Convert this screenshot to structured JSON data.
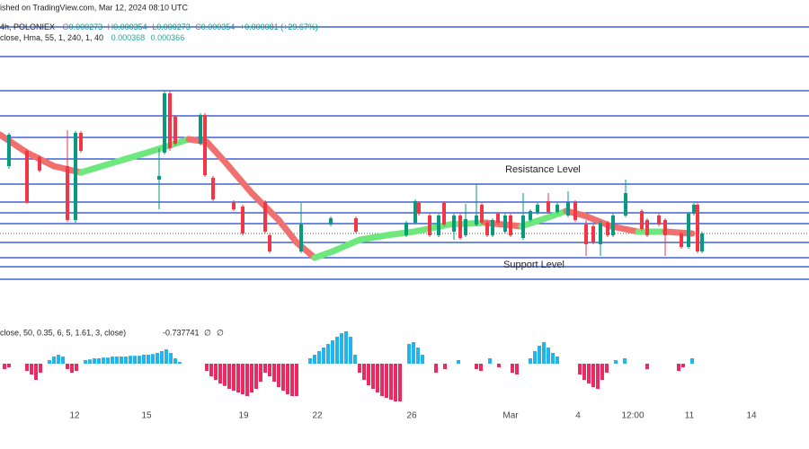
{
  "header": {
    "published": "ished on TradingView.com, Mar 12, 2024 08:10 UTC",
    "symbol": "4h, POLONIEX",
    "ohlc_labels": [
      "O",
      "H",
      "L",
      "C"
    ],
    "ohlc_values": [
      0.000273,
      0.000354,
      0.000273,
      0.000354
    ],
    "change": "+0.000081 (+29.67%)",
    "indicator": "close, Hma, 55, 1, 240, 1, 40",
    "indicator_values": [
      0.000368,
      0.000366
    ]
  },
  "chart_data": [
    {
      "type": "candlestick",
      "xlim": [
        0,
        180
      ],
      "ylim": [
        0.0002,
        0.00054
      ],
      "up_color": "#089981",
      "down_color": "#f23645",
      "x": [
        2,
        6,
        8.8,
        15,
        16.8,
        18,
        35.4,
        36.6,
        37.8,
        39,
        44.6,
        45.6,
        47.4,
        52,
        54,
        59,
        60,
        67,
        73.6,
        79.2,
        90.4,
        92.4,
        93.2,
        95.6,
        97.6,
        98.8,
        101,
        102.4,
        103.6,
        106,
        107.2,
        108.4,
        109.6,
        110.8,
        112.4,
        113.6,
        116.4,
        118,
        119.6,
        122,
        124,
        126.4,
        128,
        130.4,
        132,
        133.6,
        135.2,
        136.4,
        139.2,
        142.8,
        144,
        146.6,
        148,
        151.6,
        153.2,
        154.4,
        155.2,
        156.2
      ],
      "open": [
        0.000355,
        0.000372,
        0.000365,
        0.000355,
        0.000295,
        0.000392,
        0.00034,
        0.00037,
        0.000436,
        0.00041,
        0.00038,
        0.000412,
        0.000342,
        0.000315,
        0.00031,
        0.000315,
        0.000278,
        0.00026,
        0.00029,
        0.000297,
        0.000278,
        0.000292,
        0.000314,
        0.0003,
        0.000278,
        0.000314,
        0.000282,
        0.0003,
        0.000278,
        0.00029,
        0.000312,
        0.000292,
        0.000278,
        0.000302,
        0.000282,
        0.0003,
        0.000275,
        0.000295,
        0.000303,
        0.000316,
        0.000304,
        0.0003,
        0.000315,
        0.00029,
        0.000288,
        0.000268,
        0.000292,
        0.000278,
        0.0003,
        0.000305,
        0.000295,
        0.0003,
        0.000295,
        0.00028,
        0.000265,
        0.000302,
        0.000312,
        0.00026
      ],
      "high": [
        0.000392,
        0.000374,
        0.000367,
        0.000395,
        0.000394,
        0.000394,
        0.000375,
        0.000439,
        0.000439,
        0.000412,
        0.000414,
        0.000414,
        0.000344,
        0.000317,
        0.000312,
        0.000317,
        0.00028,
        0.000314,
        0.000299,
        0.000299,
        0.000294,
        0.000318,
        0.000316,
        0.000302,
        0.000302,
        0.000316,
        0.000302,
        0.000302,
        0.000313,
        0.000335,
        0.000314,
        0.000294,
        0.000297,
        0.000304,
        0.000302,
        0.000302,
        0.000325,
        0.000307,
        0.000314,
        0.000325,
        0.000314,
        0.000327,
        0.000317,
        0.000295,
        0.00029,
        0.000294,
        0.000294,
        0.000302,
        0.00034,
        0.000307,
        0.000297,
        0.000302,
        0.000297,
        0.000282,
        0.000304,
        0.000314,
        0.000314,
        0.000282
      ],
      "low": [
        0.000352,
        0.000313,
        0.000348,
        0.000293,
        0.000292,
        0.00037,
        0.000307,
        0.000368,
        0.000372,
        0.000378,
        0.000378,
        0.000343,
        0.000316,
        0.000305,
        0.000278,
        0.00028,
        0.000258,
        0.000258,
        0.000288,
        0.00028,
        0.000276,
        0.00029,
        0.0003,
        0.000276,
        0.000276,
        0.000288,
        0.000273,
        0.000273,
        0.000276,
        0.000288,
        0.00029,
        0.000276,
        0.000276,
        0.00029,
        0.00028,
        0.000276,
        0.000273,
        0.000293,
        0.000301,
        0.000302,
        0.000302,
        0.000298,
        0.000293,
        0.000255,
        0.000268,
        0.000255,
        0.000276,
        0.000276,
        0.000298,
        0.000283,
        0.000276,
        0.000288,
        0.000255,
        0.000263,
        0.000263,
        0.0003,
        0.000258,
        0.000258
      ],
      "close": [
        0.00039,
        0.000315,
        0.00035,
        0.000295,
        0.000392,
        0.000372,
        0.000344,
        0.000436,
        0.000375,
        0.00038,
        0.000412,
        0.000345,
        0.000318,
        0.000307,
        0.00028,
        0.000282,
        0.00026,
        0.00029,
        0.000297,
        0.000282,
        0.000292,
        0.000316,
        0.000302,
        0.000278,
        0.0003,
        0.00029,
        0.0003,
        0.000275,
        0.000296,
        0.0003,
        0.000292,
        0.000278,
        0.000295,
        0.000292,
        0.0003,
        0.000278,
        0.0003,
        0.000305,
        0.000312,
        0.000304,
        0.000312,
        0.000315,
        0.000295,
        0.000268,
        0.00027,
        0.000292,
        0.000278,
        0.0003,
        0.000325,
        0.000285,
        0.000278,
        0.00029,
        0.000278,
        0.000265,
        0.000302,
        0.000312,
        0.00026,
        0.00028
      ],
      "ma": {
        "x": [
          0,
          6,
          12,
          18,
          26,
          34,
          42,
          46,
          50,
          56,
          62,
          66,
          70,
          74,
          80,
          86,
          92,
          100,
          108,
          116,
          122,
          126,
          130,
          136,
          142,
          148,
          154
        ],
        "values": [
          0.00039,
          0.00037,
          0.000355,
          0.000348,
          0.00036,
          0.000372,
          0.000385,
          0.000382,
          0.00036,
          0.000325,
          0.000295,
          0.00027,
          0.000253,
          0.00026,
          0.000273,
          0.000278,
          0.000282,
          0.00029,
          0.000292,
          0.000288,
          0.000298,
          0.000305,
          0.0003,
          0.000288,
          0.000282,
          0.000282,
          0.00028
        ],
        "rise_color": "#6ee87c",
        "fall_color": "#f07070"
      },
      "levels": [
        0.00051,
        0.000477,
        0.000439,
        0.000411,
        0.000387,
        0.000363,
        0.000335,
        0.000315,
        0.000303,
        0.000291,
        0.00027,
        0.000253,
        0.000243,
        0.000229
      ],
      "level_color": "#1f45c9",
      "price_line": 0.00028,
      "annotations": [
        "Resistance Level",
        "Support Level"
      ],
      "annotation_colors": [
        "#f23645",
        "#2962ff"
      ],
      "xticks": [
        {
          "value": 16.6,
          "label": "12"
        },
        {
          "value": 32.6,
          "label": "15"
        },
        {
          "value": 54.2,
          "label": "19"
        },
        {
          "value": 70.6,
          "label": "22"
        },
        {
          "value": 91.6,
          "label": "26"
        },
        {
          "value": 113.6,
          "label": "Mar"
        },
        {
          "value": 128.6,
          "label": "4"
        },
        {
          "value": 140.8,
          "label": "12:00"
        },
        {
          "value": 153.4,
          "label": "11"
        },
        {
          "value": 167.2,
          "label": "14"
        }
      ]
    },
    {
      "type": "histogram",
      "title": "close, 50, 0.35, 6, 5, 1.61, 3, close)",
      "last_value": -0.737741,
      "symbols": [
        "∅",
        "∅"
      ],
      "xlim": [
        0,
        180
      ],
      "ylim": [
        -1.15,
        1.0
      ],
      "pos_color": "#22b5ec",
      "neg_color": "#ec2a62",
      "x": [
        1,
        2,
        6,
        7,
        8,
        9,
        11,
        12,
        13,
        14,
        15,
        16,
        17,
        19,
        20,
        21,
        22,
        23,
        24,
        25,
        26,
        27,
        28,
        29,
        30,
        31,
        32,
        33,
        34,
        35,
        36,
        37,
        38,
        39,
        40,
        46,
        47,
        48,
        49,
        50,
        51,
        52,
        53,
        54,
        55,
        56,
        57,
        58,
        59,
        60,
        61,
        62,
        63,
        64,
        65,
        66,
        69,
        70,
        71,
        72,
        73,
        74,
        75,
        76,
        77,
        78,
        79,
        80,
        81,
        82,
        83,
        84,
        85,
        86,
        87,
        88,
        89,
        91,
        92,
        93,
        94,
        97,
        99,
        102,
        106,
        107,
        109,
        111,
        114,
        115,
        118,
        119,
        120,
        121,
        122,
        123,
        124,
        129,
        130,
        131,
        132,
        133,
        134,
        135,
        137,
        139,
        144,
        151,
        152,
        154
      ],
      "values": [
        -0.15,
        -0.1,
        -0.2,
        -0.3,
        -0.45,
        -0.25,
        0.1,
        0.2,
        0.25,
        0.2,
        -0.15,
        -0.25,
        -0.2,
        0.1,
        0.12,
        0.15,
        0.15,
        0.17,
        0.17,
        0.2,
        0.2,
        0.2,
        0.2,
        0.22,
        0.22,
        0.22,
        0.25,
        0.25,
        0.27,
        0.3,
        0.35,
        0.4,
        0.3,
        0.15,
        0.05,
        -0.2,
        -0.35,
        -0.45,
        -0.55,
        -0.62,
        -0.7,
        -0.75,
        -0.8,
        -0.85,
        -0.9,
        -0.8,
        -0.7,
        -0.5,
        -0.25,
        -0.35,
        -0.5,
        -0.65,
        -0.75,
        -0.85,
        -0.9,
        -0.9,
        0.15,
        0.25,
        0.35,
        0.45,
        0.55,
        0.65,
        0.75,
        0.85,
        0.9,
        0.75,
        0.25,
        -0.25,
        -0.45,
        -0.6,
        -0.7,
        -0.8,
        -0.9,
        -0.95,
        -1.0,
        -1.05,
        -1.05,
        0.55,
        0.6,
        0.45,
        0.25,
        -0.25,
        -0.15,
        0.1,
        -0.15,
        -0.2,
        0.15,
        -0.1,
        -0.25,
        -0.3,
        0.15,
        0.35,
        0.5,
        0.6,
        0.45,
        0.3,
        0.2,
        -0.3,
        -0.45,
        -0.55,
        -0.65,
        -0.7,
        -0.45,
        -0.25,
        0.1,
        0.15,
        -0.15,
        -0.2,
        -0.1,
        0.15
      ]
    }
  ]
}
